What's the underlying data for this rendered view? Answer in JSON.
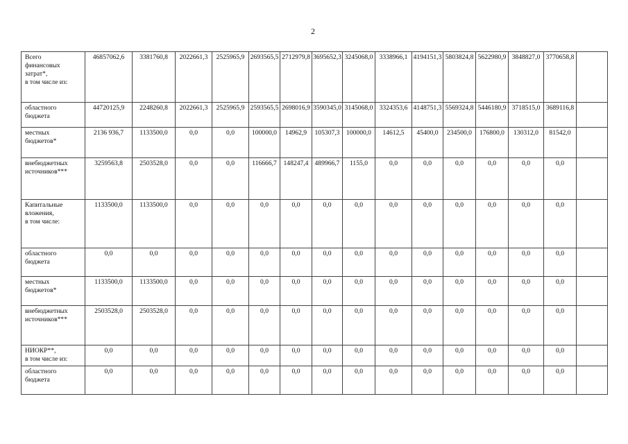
{
  "page_number": "2",
  "table": {
    "rows": [
      {
        "label": "Всего\nфинансовых\nзатрат*,\nв том числе из:",
        "values": [
          "46857062,6",
          "3381760,8",
          "2022661,3",
          "2525965,9",
          "2693565,5",
          "2712979,8",
          "3695652,3",
          "3245068,0",
          "3338966,1",
          "4194151,3",
          "5803824,8",
          "5622980,9",
          "3848827,0",
          "3770658,8",
          ""
        ]
      },
      {
        "label": "областного\nбюджета",
        "values": [
          "44720125,9",
          "2248260,8",
          "2022661,3",
          "2525965,9",
          "2593565,5",
          "2698016,9",
          "3590345,0",
          "3145068,0",
          "3324353,6",
          "4148751,3",
          "5569324,8",
          "5446180,9",
          "3718515,0",
          "3689116,8",
          ""
        ]
      },
      {
        "label": "местных\nбюджетов*",
        "values": [
          "2136 936,7",
          "1133500,0",
          "0,0",
          "0,0",
          "100000,0",
          "14962,9",
          "105307,3",
          "100000,0",
          "14612,5",
          "45400,0",
          "234500,0",
          "176800,0",
          "130312,0",
          "81542,0",
          ""
        ]
      },
      {
        "label": "внебюджетных\nисточников***",
        "values": [
          "3259563,8",
          "2503528,0",
          "0,0",
          "0,0",
          "116666,7",
          "148247,4",
          "489966,7",
          "1155,0",
          "0,0",
          "0,0",
          "0,0",
          "0,0",
          "0,0",
          "0,0",
          ""
        ]
      },
      {
        "label": "Капитальные\nвложения,\nв том числе:",
        "values": [
          "1133500,0",
          "1133500,0",
          "0,0",
          "0,0",
          "0,0",
          "0,0",
          "0,0",
          "0,0",
          "0,0",
          "0,0",
          "0,0",
          "0,0",
          "0,0",
          "0,0",
          ""
        ]
      },
      {
        "label": "областного\nбюджета",
        "values": [
          "0,0",
          "0,0",
          "0,0",
          "0,0",
          "0,0",
          "0,0",
          "0,0",
          "0,0",
          "0,0",
          "0,0",
          "0,0",
          "0,0",
          "0,0",
          "0,0",
          ""
        ]
      },
      {
        "label": "местных\nбюджетов*",
        "values": [
          "1133500,0",
          "1133500,0",
          "0,0",
          "0,0",
          "0,0",
          "0,0",
          "0,0",
          "0,0",
          "0,0",
          "0,0",
          "0,0",
          "0,0",
          "0,0",
          "0,0",
          ""
        ]
      },
      {
        "label": "внебюджетных\nисточников***",
        "values": [
          "2503528,0",
          "2503528,0",
          "0,0",
          "0,0",
          "0,0",
          "0,0",
          "0,0",
          "0,0",
          "0,0",
          "0,0",
          "0,0",
          "0,0",
          "0,0",
          "0,0",
          ""
        ]
      },
      {
        "label": "НИОКР**,\nв том числе из:",
        "values": [
          "0,0",
          "0,0",
          "0,0",
          "0,0",
          "0,0",
          "0,0",
          "0,0",
          "0,0",
          "0,0",
          "0,0",
          "0,0",
          "0,0",
          "0,0",
          "0,0",
          ""
        ]
      },
      {
        "label": "областного\nбюджета",
        "values": [
          "0,0",
          "0,0",
          "0,0",
          "0,0",
          "0,0",
          "0,0",
          "0,0",
          "0,0",
          "0,0",
          "0,0",
          "0,0",
          "0,0",
          "0,0",
          "0,0",
          ""
        ]
      }
    ]
  }
}
